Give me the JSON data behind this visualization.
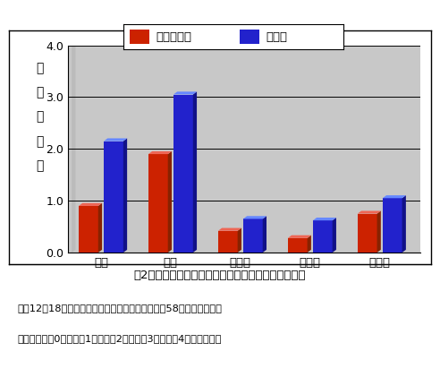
{
  "categories": [
    "萎化",
    "倒伏",
    "紫斑粒",
    "褐斑粒",
    "裂皮粒"
  ],
  "suzuhonoka": [
    0.9,
    1.9,
    0.42,
    0.28,
    0.75
  ],
  "kosuzu": [
    2.15,
    3.05,
    0.65,
    0.62,
    1.05
  ],
  "suzuhonoka_color": "#cc2200",
  "kosuzu_color": "#2222cc",
  "suzuhonoka_top": "#ee6655",
  "kosuzu_top": "#6688ff",
  "suzuhonoka_side": "#882200",
  "kosuzu_side": "#111188",
  "ylim": [
    0.0,
    4.0
  ],
  "yticks": [
    0.0,
    1.0,
    2.0,
    3.0,
    4.0
  ],
  "ylabel_chars": [
    "障",
    "害",
    "の",
    "程",
    "度"
  ],
  "legend_suzuhonoka": "すずほのか",
  "legend_kosuzu": "コスズ",
  "plot_bg": "#c8c8c8",
  "floor_color": "#b0b0b0",
  "wall_color": "#d0d0d0",
  "title_text": "図2　「すずほのか」の生育中の障害と障害粒の程度",
  "footnote1": "平成12～18年の東北地域の農試・農家圃場（延だ58カ所）の平均。",
  "footnote2": "障害の程度は0：無、、1：微、、2：少、、3：中、、4：多である。"
}
